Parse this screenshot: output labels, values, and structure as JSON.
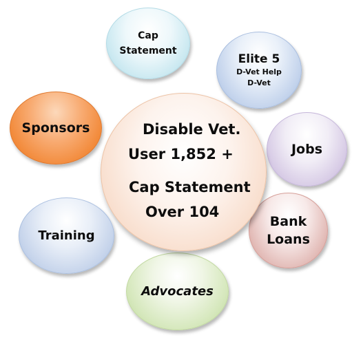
{
  "diagram": {
    "center": {
      "lines": [
        "Disable Vet.",
        "User 1,852 +",
        "Cap Statement",
        "Over 104"
      ]
    },
    "bubbles": {
      "cap_statement": {
        "lines": [
          "Cap",
          "Statement"
        ]
      },
      "elite5": {
        "title": "Elite 5",
        "sub": [
          "D-Vet Help",
          "D-Vet"
        ]
      },
      "jobs": {
        "label": "Jobs"
      },
      "bank_loans": {
        "lines": [
          "Bank",
          "Loans"
        ]
      },
      "advocates": {
        "label": "Advocates"
      },
      "training": {
        "label": "Training"
      },
      "sponsors": {
        "label": "Sponsors"
      }
    },
    "colors": {
      "cap_statement": "#cbe9f1",
      "elite5": "#c3d3ec",
      "jobs": "#d8cce6",
      "bank_loans": "#e3bcb8",
      "advocates": "#d6e8bd",
      "training": "#c6d4eb",
      "sponsors": "#f28a3a",
      "center": "#f8dcca"
    }
  }
}
